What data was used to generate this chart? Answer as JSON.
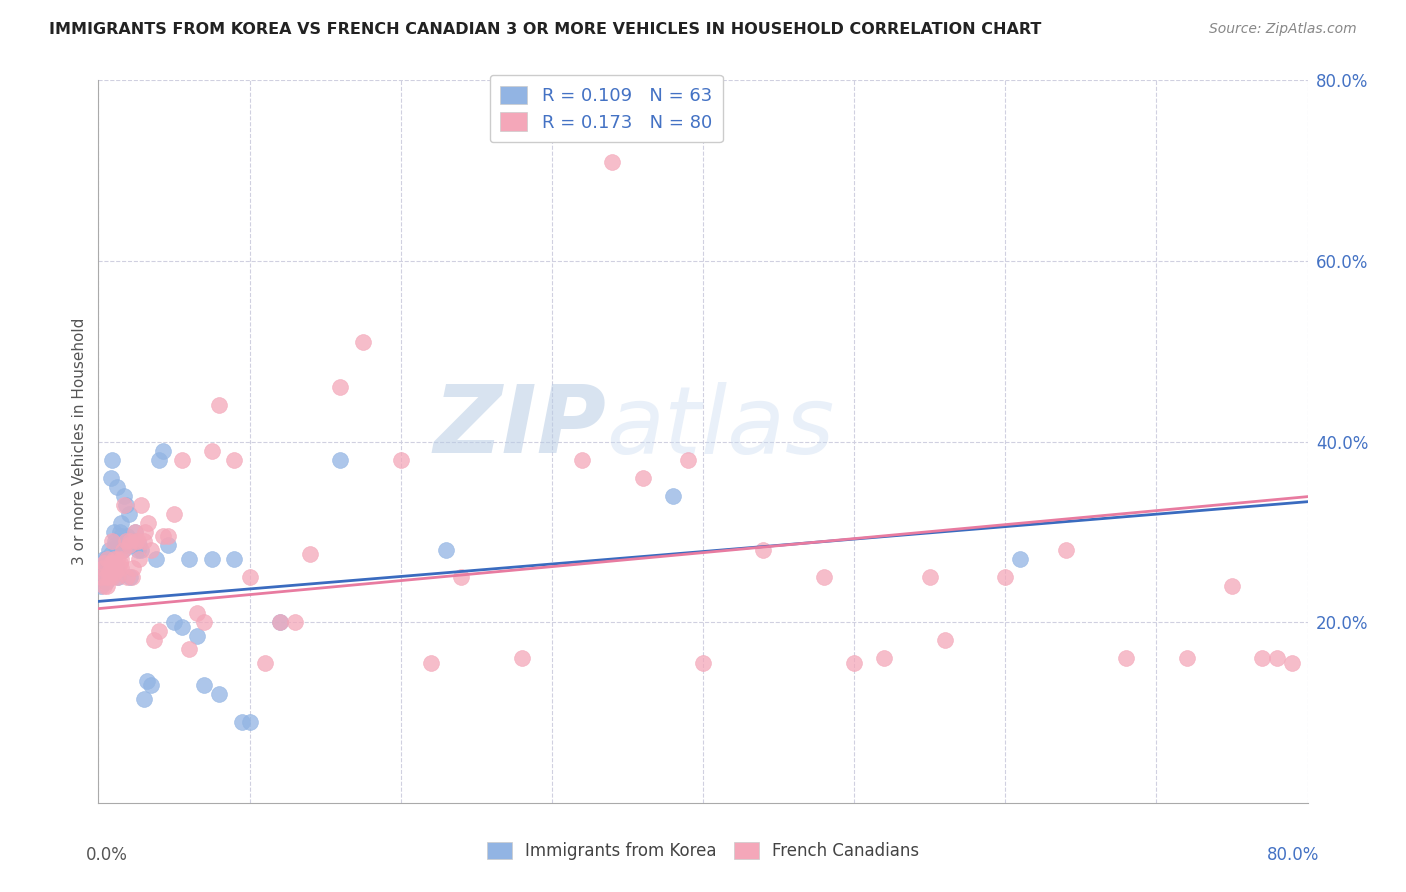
{
  "title": "IMMIGRANTS FROM KOREA VS FRENCH CANADIAN 3 OR MORE VEHICLES IN HOUSEHOLD CORRELATION CHART",
  "source": "Source: ZipAtlas.com",
  "ylabel": "3 or more Vehicles in Household",
  "xlim": [
    0.0,
    0.8
  ],
  "ylim": [
    0.0,
    0.8
  ],
  "korea_color": "#92b4e3",
  "french_color": "#f4a7b9",
  "korea_line_color": "#3a6bbf",
  "french_line_color": "#e87ba0",
  "watermark_color": "#c8d8f0",
  "korea_R": 0.109,
  "korea_N": 63,
  "french_R": 0.173,
  "french_N": 80,
  "korea_intercept": 0.223,
  "korea_slope": 0.138,
  "french_intercept": 0.215,
  "french_slope": 0.155,
  "korea_x": [
    0.002,
    0.003,
    0.003,
    0.004,
    0.004,
    0.005,
    0.005,
    0.005,
    0.006,
    0.006,
    0.007,
    0.007,
    0.008,
    0.008,
    0.009,
    0.009,
    0.01,
    0.01,
    0.011,
    0.011,
    0.012,
    0.012,
    0.013,
    0.013,
    0.014,
    0.014,
    0.015,
    0.015,
    0.016,
    0.017,
    0.017,
    0.018,
    0.019,
    0.02,
    0.021,
    0.022,
    0.023,
    0.024,
    0.026,
    0.027,
    0.028,
    0.03,
    0.032,
    0.035,
    0.038,
    0.04,
    0.043,
    0.046,
    0.05,
    0.055,
    0.06,
    0.065,
    0.07,
    0.075,
    0.08,
    0.09,
    0.095,
    0.1,
    0.12,
    0.16,
    0.23,
    0.38,
    0.61
  ],
  "korea_y": [
    0.24,
    0.255,
    0.265,
    0.27,
    0.26,
    0.245,
    0.27,
    0.25,
    0.255,
    0.26,
    0.265,
    0.28,
    0.275,
    0.36,
    0.38,
    0.26,
    0.3,
    0.27,
    0.29,
    0.285,
    0.35,
    0.26,
    0.25,
    0.285,
    0.29,
    0.3,
    0.31,
    0.295,
    0.28,
    0.285,
    0.34,
    0.33,
    0.295,
    0.32,
    0.25,
    0.285,
    0.29,
    0.3,
    0.28,
    0.285,
    0.28,
    0.115,
    0.135,
    0.13,
    0.27,
    0.38,
    0.39,
    0.285,
    0.2,
    0.195,
    0.27,
    0.185,
    0.13,
    0.27,
    0.12,
    0.27,
    0.09,
    0.09,
    0.2,
    0.38,
    0.28,
    0.34,
    0.27
  ],
  "french_x": [
    0.002,
    0.003,
    0.004,
    0.004,
    0.005,
    0.006,
    0.006,
    0.007,
    0.007,
    0.008,
    0.009,
    0.009,
    0.01,
    0.01,
    0.011,
    0.012,
    0.012,
    0.013,
    0.014,
    0.015,
    0.015,
    0.016,
    0.017,
    0.018,
    0.019,
    0.02,
    0.021,
    0.022,
    0.023,
    0.024,
    0.025,
    0.026,
    0.027,
    0.028,
    0.03,
    0.031,
    0.033,
    0.035,
    0.037,
    0.04,
    0.043,
    0.046,
    0.05,
    0.055,
    0.06,
    0.065,
    0.07,
    0.075,
    0.08,
    0.09,
    0.1,
    0.11,
    0.12,
    0.13,
    0.14,
    0.16,
    0.175,
    0.2,
    0.22,
    0.24,
    0.28,
    0.32,
    0.36,
    0.4,
    0.44,
    0.48,
    0.52,
    0.56,
    0.6,
    0.64,
    0.68,
    0.72,
    0.75,
    0.77,
    0.78,
    0.79,
    0.34,
    0.39,
    0.5,
    0.55
  ],
  "french_y": [
    0.25,
    0.26,
    0.24,
    0.265,
    0.25,
    0.24,
    0.27,
    0.255,
    0.25,
    0.265,
    0.29,
    0.25,
    0.27,
    0.26,
    0.255,
    0.27,
    0.25,
    0.26,
    0.265,
    0.27,
    0.26,
    0.28,
    0.33,
    0.29,
    0.25,
    0.285,
    0.29,
    0.25,
    0.26,
    0.3,
    0.29,
    0.29,
    0.27,
    0.33,
    0.29,
    0.3,
    0.31,
    0.28,
    0.18,
    0.19,
    0.295,
    0.295,
    0.32,
    0.38,
    0.17,
    0.21,
    0.2,
    0.39,
    0.44,
    0.38,
    0.25,
    0.155,
    0.2,
    0.2,
    0.275,
    0.46,
    0.51,
    0.38,
    0.155,
    0.25,
    0.16,
    0.38,
    0.36,
    0.155,
    0.28,
    0.25,
    0.16,
    0.18,
    0.25,
    0.28,
    0.16,
    0.16,
    0.24,
    0.16,
    0.16,
    0.155,
    0.71,
    0.38,
    0.155,
    0.25
  ]
}
